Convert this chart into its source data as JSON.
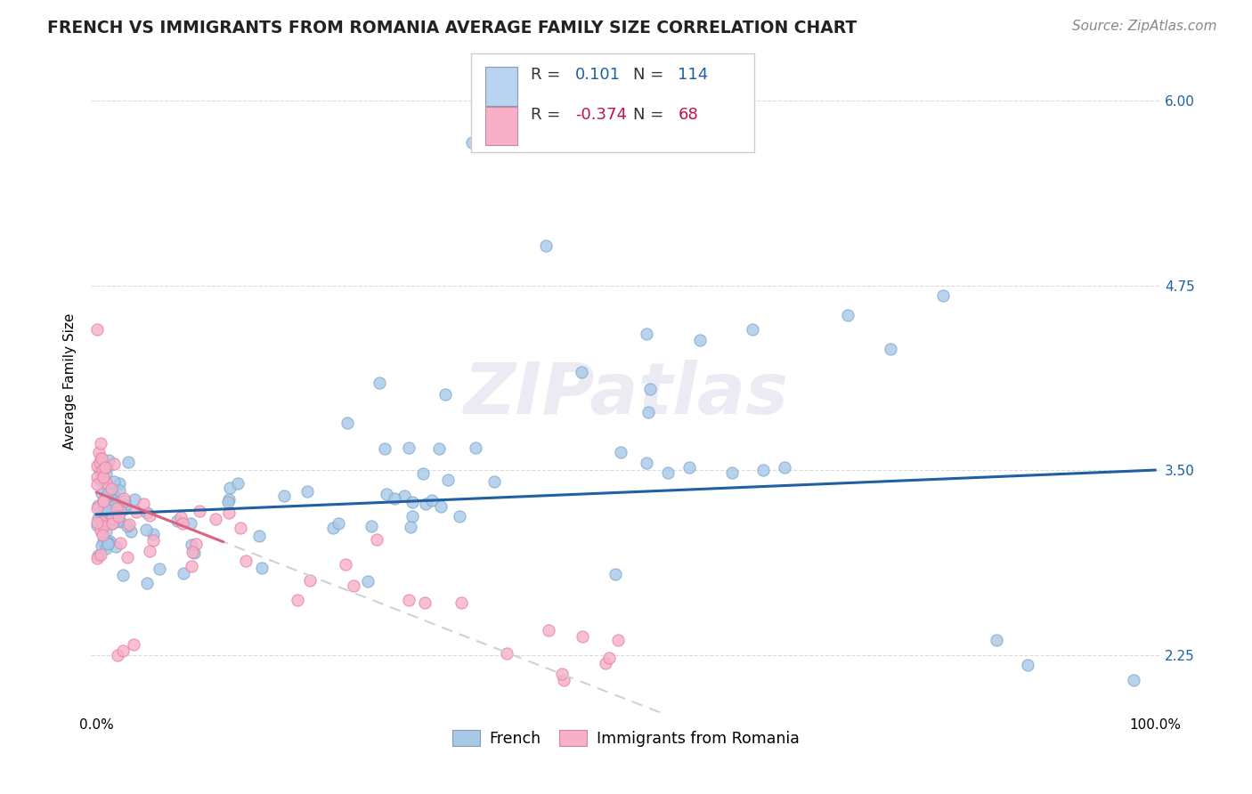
{
  "title": "FRENCH VS IMMIGRANTS FROM ROMANIA AVERAGE FAMILY SIZE CORRELATION CHART",
  "source": "Source: ZipAtlas.com",
  "ylabel": "Average Family Size",
  "watermark": "ZIPatlas",
  "yticks": [
    2.25,
    3.5,
    4.75,
    6.0
  ],
  "ylim": [
    1.85,
    6.35
  ],
  "xlim": [
    -0.005,
    1.005
  ],
  "french_color": "#a8c8e8",
  "romania_color": "#f8b0c8",
  "french_line_color": "#2060a0",
  "romania_line_color": "#d0d0d8",
  "background_color": "#ffffff",
  "grid_color": "#cccccc",
  "title_fontsize": 13.5,
  "source_fontsize": 11,
  "axis_label_fontsize": 11,
  "tick_fontsize": 11,
  "legend_fontsize": 13,
  "r_color_blue": "#2060a0",
  "r_color_pink": "#c01050",
  "legend_box_blue": "#b8d4f0",
  "legend_box_pink": "#f8b0c8"
}
